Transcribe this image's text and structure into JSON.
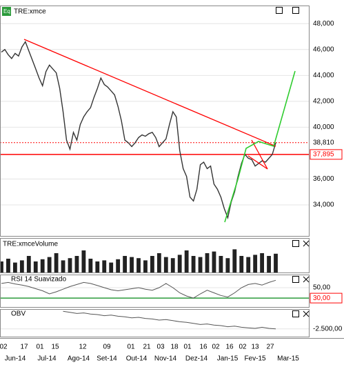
{
  "chart_data": [
    {
      "type": "line",
      "title": "TRE:xmce",
      "color": "#333333",
      "values": [
        45800,
        46000,
        45600,
        45300,
        45700,
        45500,
        46200,
        46600,
        45900,
        45200,
        44500,
        43800,
        43200,
        44300,
        44800,
        44500,
        44200,
        43000,
        41200,
        39000,
        38300,
        39600,
        39000,
        40200,
        40800,
        41200,
        41500,
        42300,
        43000,
        43800,
        43300,
        43100,
        42800,
        42500,
        41600,
        40500,
        39000,
        38800,
        38500,
        38800,
        39200,
        39400,
        39300,
        39500,
        39600,
        39200,
        38500,
        38800,
        39100,
        40200,
        41200,
        40800,
        38200,
        36800,
        36200,
        34600,
        34300,
        35200,
        37100,
        37300,
        36800,
        37000,
        35600,
        35200,
        34600,
        33700,
        33000,
        34200,
        35000,
        36200,
        37200,
        37900,
        37600,
        37500,
        37000,
        37200,
        37400,
        37300,
        37600,
        37900,
        38800
      ],
      "ylim": [
        31600,
        49400
      ],
      "yticks": [
        {
          "value": 48000,
          "label": "48,000"
        },
        {
          "value": 46000,
          "label": "46,000"
        },
        {
          "value": 44000,
          "label": "44,000"
        },
        {
          "value": 42000,
          "label": "42,000"
        },
        {
          "value": 40000,
          "label": "40,000"
        },
        {
          "value": 36000,
          "label": "36,000"
        },
        {
          "value": 34000,
          "label": "34,000"
        }
      ],
      "reference_lines": [
        {
          "value": 38810,
          "label": "38,810",
          "style": "dotted"
        },
        {
          "value": 37895,
          "label": "37,895",
          "style": "solid"
        }
      ],
      "grid": true
    },
    {
      "type": "bar",
      "title": "TRE:xmceVolume",
      "color": "#222222",
      "values": [
        20,
        25,
        18,
        22,
        30,
        20,
        24,
        28,
        35,
        22,
        26,
        30,
        40,
        25,
        20,
        22,
        18,
        24,
        30,
        28,
        26,
        22,
        30,
        35,
        28,
        26,
        32,
        40,
        30,
        28,
        35,
        38,
        30,
        26,
        42,
        30,
        28,
        32,
        35,
        30,
        34
      ],
      "ylim": [
        0,
        50
      ]
    },
    {
      "type": "line",
      "title": "RSI 14 Suavizado",
      "color": "#555555",
      "values": [
        58,
        60,
        57,
        55,
        52,
        48,
        44,
        38,
        42,
        47,
        52,
        56,
        60,
        58,
        54,
        50,
        46,
        44,
        46,
        48,
        50,
        47,
        45,
        50,
        58,
        50,
        40,
        34,
        30,
        38,
        45,
        40,
        35,
        32,
        40,
        50,
        56,
        58,
        55,
        60,
        64
      ],
      "ylim": [
        13,
        75
      ],
      "yticks": [
        {
          "value": 50,
          "label": "50,00"
        }
      ],
      "reference_lines": [
        {
          "value": 30,
          "label": "30,00",
          "style": "solid"
        }
      ],
      "grid": true
    },
    {
      "type": "line",
      "title": "OBV",
      "color": "#555555",
      "values": [
        null,
        null,
        null,
        null,
        null,
        null,
        null,
        null,
        null,
        -900,
        -1000,
        -1100,
        -1050,
        -1150,
        -1200,
        -1300,
        -1250,
        -1350,
        -1400,
        -1500,
        -1450,
        -1550,
        -1600,
        -1700,
        -1650,
        -1750,
        -1850,
        -1900,
        -2000,
        -2100,
        -2050,
        -2150,
        -2200,
        -2300,
        -2250,
        -2350,
        -2400,
        -2450,
        -2350,
        -2450,
        -2500
      ],
      "ylim": [
        -3200,
        -700
      ],
      "yticks": [
        {
          "value": -2500,
          "label": "-2.500,00"
        }
      ],
      "grid": true
    }
  ],
  "x_axis": {
    "days": [
      "02",
      "17",
      "01",
      "15",
      "12",
      "09",
      "01",
      "21",
      "03",
      "18",
      "01",
      "16",
      "02",
      "16",
      "02",
      "13",
      "27"
    ],
    "months": [
      "Jun-14",
      "Jul-14",
      "Ago-14",
      "Set-14",
      "Out-14",
      "Nov-14",
      "Dez-14",
      "Jan-15",
      "Fev-15",
      "Mar-15"
    ]
  }
}
